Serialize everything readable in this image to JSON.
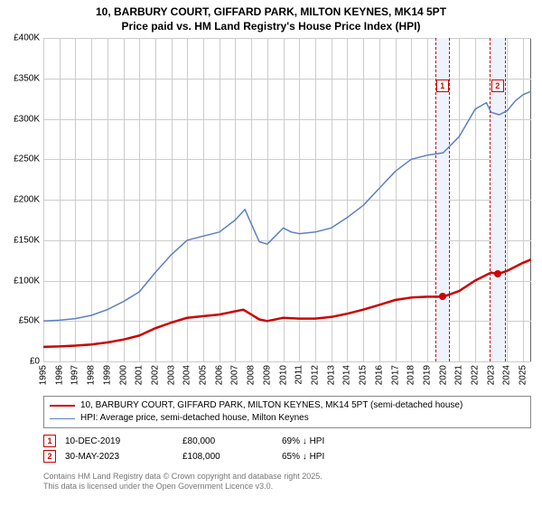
{
  "title": {
    "line1": "10, BARBURY COURT, GIFFARD PARK, MILTON KEYNES, MK14 5PT",
    "line2": "Price paid vs. HM Land Registry's House Price Index (HPI)"
  },
  "chart": {
    "type": "line",
    "background_color": "#ffffff",
    "grid_color": "#cccccc",
    "axis_color": "#666666",
    "ylim": [
      0,
      400000
    ],
    "ytick_step": 50000,
    "yticks": [
      "£0",
      "£50K",
      "£100K",
      "£150K",
      "£200K",
      "£250K",
      "£300K",
      "£350K",
      "£400K"
    ],
    "xlim": [
      1995,
      2025.5
    ],
    "xticks": [
      1995,
      1996,
      1997,
      1998,
      1999,
      2000,
      2001,
      2002,
      2003,
      2004,
      2005,
      2006,
      2007,
      2008,
      2009,
      2010,
      2011,
      2012,
      2013,
      2014,
      2015,
      2016,
      2017,
      2018,
      2019,
      2020,
      2021,
      2022,
      2023,
      2024,
      2025
    ],
    "series": [
      {
        "id": "property",
        "label": "10, BARBURY COURT, GIFFARD PARK, MILTON KEYNES, MK14 5PT (semi-detached house)",
        "color": "#cc0000",
        "line_width": 2.5,
        "data": [
          [
            1995,
            18000
          ],
          [
            1996,
            18500
          ],
          [
            1997,
            19500
          ],
          [
            1998,
            21000
          ],
          [
            1999,
            23500
          ],
          [
            2000,
            27000
          ],
          [
            2001,
            32000
          ],
          [
            2002,
            41000
          ],
          [
            2003,
            48000
          ],
          [
            2004,
            54000
          ],
          [
            2005,
            56000
          ],
          [
            2006,
            58000
          ],
          [
            2007,
            62000
          ],
          [
            2007.5,
            64000
          ],
          [
            2008,
            58000
          ],
          [
            2008.5,
            52000
          ],
          [
            2009,
            50000
          ],
          [
            2010,
            54000
          ],
          [
            2011,
            53000
          ],
          [
            2012,
            53000
          ],
          [
            2013,
            55000
          ],
          [
            2014,
            59000
          ],
          [
            2015,
            64000
          ],
          [
            2016,
            70000
          ],
          [
            2017,
            76000
          ],
          [
            2018,
            79000
          ],
          [
            2019,
            80000
          ],
          [
            2019.95,
            80000
          ],
          [
            2020,
            80000
          ],
          [
            2021,
            87000
          ],
          [
            2022,
            100000
          ],
          [
            2023,
            110000
          ],
          [
            2023.4,
            108000
          ],
          [
            2024,
            112000
          ],
          [
            2025,
            122000
          ],
          [
            2025.5,
            126000
          ]
        ]
      },
      {
        "id": "hpi",
        "label": "HPI: Average price, semi-detached house, Milton Keynes",
        "color": "#5b7fc7",
        "line_width": 1.5,
        "data": [
          [
            1995,
            50000
          ],
          [
            1996,
            51000
          ],
          [
            1997,
            53000
          ],
          [
            1998,
            57000
          ],
          [
            1999,
            64000
          ],
          [
            2000,
            74000
          ],
          [
            2001,
            86000
          ],
          [
            2002,
            110000
          ],
          [
            2003,
            132000
          ],
          [
            2004,
            150000
          ],
          [
            2005,
            155000
          ],
          [
            2006,
            160000
          ],
          [
            2007,
            175000
          ],
          [
            2007.6,
            188000
          ],
          [
            2008,
            170000
          ],
          [
            2008.5,
            148000
          ],
          [
            2009,
            145000
          ],
          [
            2009.5,
            155000
          ],
          [
            2010,
            165000
          ],
          [
            2010.5,
            160000
          ],
          [
            2011,
            158000
          ],
          [
            2012,
            160000
          ],
          [
            2013,
            165000
          ],
          [
            2014,
            178000
          ],
          [
            2015,
            193000
          ],
          [
            2016,
            214000
          ],
          [
            2017,
            235000
          ],
          [
            2018,
            250000
          ],
          [
            2019,
            255000
          ],
          [
            2020,
            258000
          ],
          [
            2021,
            278000
          ],
          [
            2022,
            312000
          ],
          [
            2022.7,
            320000
          ],
          [
            2023,
            308000
          ],
          [
            2023.5,
            305000
          ],
          [
            2024,
            310000
          ],
          [
            2024.5,
            322000
          ],
          [
            2025,
            330000
          ],
          [
            2025.5,
            334000
          ]
        ]
      }
    ],
    "highlights": [
      {
        "id": 1,
        "x_start": 2019.5,
        "x_end": 2020.4,
        "fill": "#eef3fb"
      },
      {
        "id": 2,
        "x_start": 2022.9,
        "x_end": 2023.9,
        "fill": "#eef3fb"
      }
    ],
    "markers": [
      {
        "id": 1,
        "x": 2019.95,
        "y": 80000,
        "label_y_top": 88
      },
      {
        "id": 2,
        "x": 2023.4,
        "y": 108000,
        "label_y_top": 88
      }
    ],
    "marker_color": "#cc0000",
    "x_label_fontsize": 10,
    "y_label_fontsize": 10
  },
  "legend": {
    "rows": [
      {
        "color": "#cc0000",
        "width": 2.5,
        "label_key": "chart.series.0.label"
      },
      {
        "color": "#5b7fc7",
        "width": 1.5,
        "label_key": "chart.series.1.label"
      }
    ]
  },
  "transactions": [
    {
      "marker": "1",
      "date": "10-DEC-2019",
      "price": "£80,000",
      "pct": "69% ↓ HPI"
    },
    {
      "marker": "2",
      "date": "30-MAY-2023",
      "price": "£108,000",
      "pct": "65% ↓ HPI"
    }
  ],
  "footnote": {
    "line1": "Contains HM Land Registry data © Crown copyright and database right 2025.",
    "line2": "This data is licensed under the Open Government Licence v3.0."
  }
}
